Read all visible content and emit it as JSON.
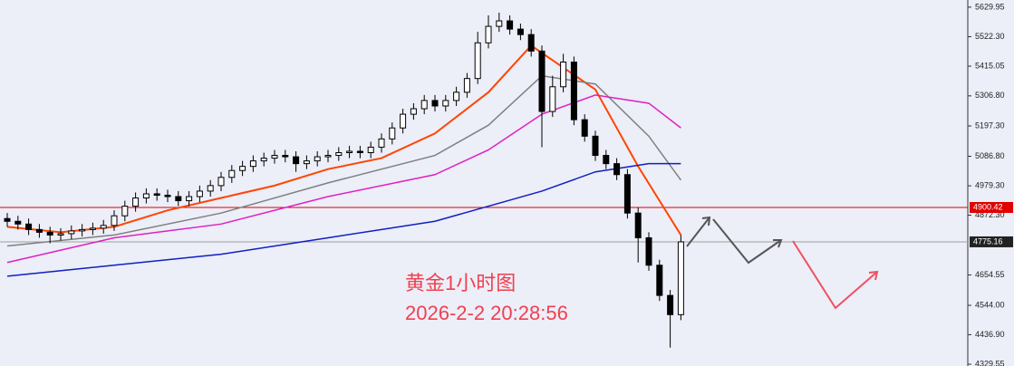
{
  "chart_data": {
    "type": "candlestick",
    "annotations": [
      "黄金1小时图",
      "2026-2-2 20:28:56"
    ],
    "open": [
      4860,
      4850,
      4840,
      4820,
      4810,
      4800,
      4805,
      4815,
      4820,
      4825,
      4835,
      4870,
      4905,
      4935,
      4950,
      4945,
      4940,
      4925,
      4940,
      4960,
      4980,
      5010,
      5035,
      5050,
      5070,
      5080,
      5090,
      5085,
      5060,
      5070,
      5085,
      5090,
      5100,
      5105,
      5100,
      5120,
      5150,
      5190,
      5240,
      5260,
      5290,
      5270,
      5290,
      5320,
      5370,
      5500,
      5560,
      5580,
      5550,
      5530,
      5470,
      5250,
      5340,
      5430,
      5220,
      5160,
      5090,
      5060,
      5020,
      4880,
      4790,
      4690,
      4580,
      4510
    ],
    "high": [
      4880,
      4870,
      4860,
      4840,
      4830,
      4825,
      4835,
      4840,
      4845,
      4855,
      4890,
      4925,
      4955,
      4970,
      4970,
      4965,
      4960,
      4960,
      4980,
      5000,
      5030,
      5055,
      5070,
      5090,
      5100,
      5110,
      5110,
      5105,
      5090,
      5105,
      5110,
      5120,
      5125,
      5125,
      5140,
      5170,
      5210,
      5260,
      5280,
      5310,
      5310,
      5310,
      5340,
      5390,
      5540,
      5600,
      5610,
      5600,
      5570,
      5550,
      5490,
      5380,
      5460,
      5450,
      5240,
      5180,
      5110,
      5080,
      5040,
      4900,
      4810,
      4710,
      4600,
      4800
    ],
    "low": [
      4830,
      4820,
      4800,
      4790,
      4770,
      4780,
      4785,
      4795,
      4800,
      4805,
      4815,
      4850,
      4885,
      4915,
      4925,
      4920,
      4905,
      4905,
      4920,
      4940,
      4960,
      4990,
      5015,
      5030,
      5050,
      5060,
      5065,
      5030,
      5040,
      5050,
      5065,
      5070,
      5080,
      5080,
      5080,
      5100,
      5130,
      5170,
      5220,
      5240,
      5250,
      5250,
      5270,
      5300,
      5350,
      5480,
      5540,
      5530,
      5510,
      5450,
      5120,
      5230,
      5320,
      5200,
      5140,
      5070,
      5040,
      5000,
      4860,
      4700,
      4670,
      4560,
      4390,
      4490
    ],
    "close": [
      4850,
      4840,
      4820,
      4810,
      4800,
      4805,
      4815,
      4820,
      4825,
      4835,
      4870,
      4905,
      4935,
      4950,
      4945,
      4940,
      4925,
      4940,
      4960,
      4980,
      5010,
      5035,
      5050,
      5070,
      5080,
      5090,
      5085,
      5060,
      5070,
      5085,
      5090,
      5100,
      5105,
      5100,
      5120,
      5150,
      5190,
      5240,
      5260,
      5290,
      5270,
      5290,
      5320,
      5370,
      5500,
      5560,
      5580,
      5550,
      5530,
      5470,
      5250,
      5340,
      5430,
      5220,
      5160,
      5090,
      5060,
      5020,
      4880,
      4790,
      4690,
      4580,
      4510,
      4775.16
    ],
    "series": [
      {
        "color": "#ff4500",
        "x": [
          0,
          5,
          10,
          15,
          20,
          25,
          30,
          35,
          40,
          45,
          49,
          55,
          59,
          63
        ],
        "values": [
          4830,
          4810,
          4830,
          4890,
          4935,
          4980,
          5040,
          5080,
          5170,
          5320,
          5490,
          5330,
          5050,
          4800
        ]
      },
      {
        "color": "#808080",
        "x": [
          0,
          10,
          20,
          30,
          40,
          45,
          50,
          55,
          60,
          63
        ],
        "values": [
          4760,
          4800,
          4880,
          4990,
          5090,
          5200,
          5380,
          5350,
          5160,
          5000
        ]
      },
      {
        "color": "#e020c0",
        "x": [
          0,
          10,
          20,
          30,
          40,
          45,
          50,
          55,
          60,
          63
        ],
        "values": [
          4700,
          4790,
          4840,
          4940,
          5020,
          5110,
          5240,
          5310,
          5280,
          5190
        ]
      },
      {
        "color": "#1020c0",
        "x": [
          0,
          10,
          20,
          30,
          40,
          50,
          55,
          60,
          63
        ],
        "values": [
          4650,
          4690,
          4730,
          4790,
          4850,
          4960,
          5030,
          5060,
          5060
        ]
      }
    ],
    "hlines": [
      {
        "value": 4900.42,
        "color": "#e00000"
      },
      {
        "value": 4775.16,
        "color": "#a0a0a0"
      }
    ],
    "ylim": [
      4323,
      5656
    ],
    "yticks": [
      5629.95,
      {
        "value": 5522.3,
        "label": "5522.30"
      },
      5415.05,
      {
        "value": 5306.8,
        "label": "5306.80"
      },
      {
        "value": 5197.3,
        "label": "5197.30"
      },
      {
        "value": 5086.8,
        "label": "5086.80"
      },
      {
        "value": 4979.3,
        "label": "4979.30"
      },
      {
        "value": 4872.3,
        "label": "4872.30"
      },
      4654.55,
      {
        "value": 4544,
        "label": "4544.00"
      },
      {
        "value": 4436.9,
        "label": "4436.90"
      },
      4329.55
    ]
  }
}
